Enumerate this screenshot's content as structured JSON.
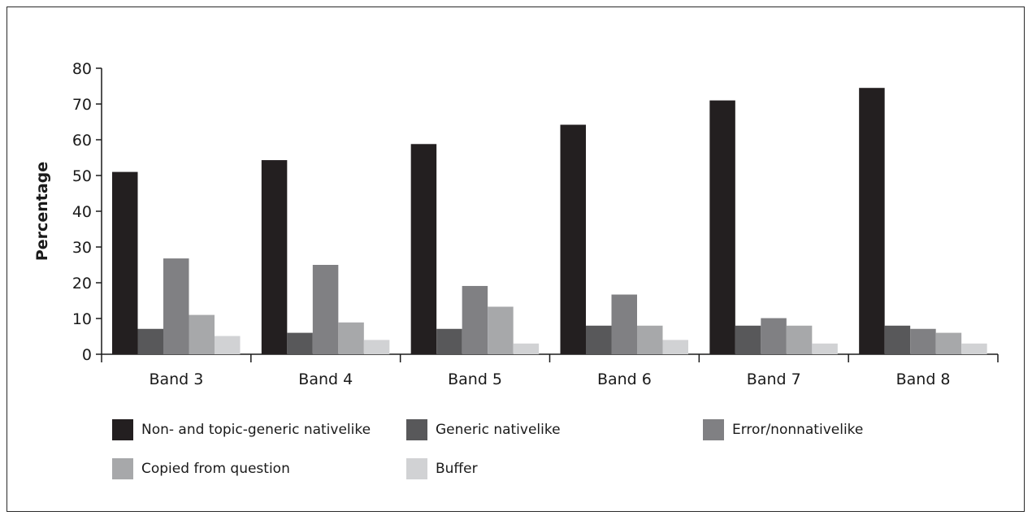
{
  "chart_data": {
    "type": "bar",
    "title": "",
    "xlabel": "",
    "ylabel": "Percentage",
    "ylim": [
      0,
      80
    ],
    "yticks": [
      0,
      10,
      20,
      30,
      40,
      50,
      60,
      70,
      80
    ],
    "categories": [
      "Band 3",
      "Band 4",
      "Band 5",
      "Band 6",
      "Band 7",
      "Band 8"
    ],
    "grid": false,
    "legend_position": "bottom",
    "series": [
      {
        "name": "Non- and topic-generic nativelike",
        "color": "#231f20",
        "values": [
          51,
          54.3,
          58.8,
          64.2,
          71,
          74.5
        ]
      },
      {
        "name": "Generic nativelike",
        "color": "#58585a",
        "values": [
          7.1,
          6,
          7.1,
          8,
          8,
          8
        ]
      },
      {
        "name": "Error/nonnativelike",
        "color": "#808083",
        "values": [
          26.8,
          25,
          19.1,
          16.7,
          10.1,
          7.1
        ]
      },
      {
        "name": "Copied from question",
        "color": "#a7a8aa",
        "values": [
          11,
          8.9,
          13.3,
          8,
          8,
          6
        ]
      },
      {
        "name": "Buffer",
        "color": "#d1d2d4",
        "values": [
          5.1,
          4,
          3,
          4,
          3,
          3
        ]
      }
    ]
  }
}
